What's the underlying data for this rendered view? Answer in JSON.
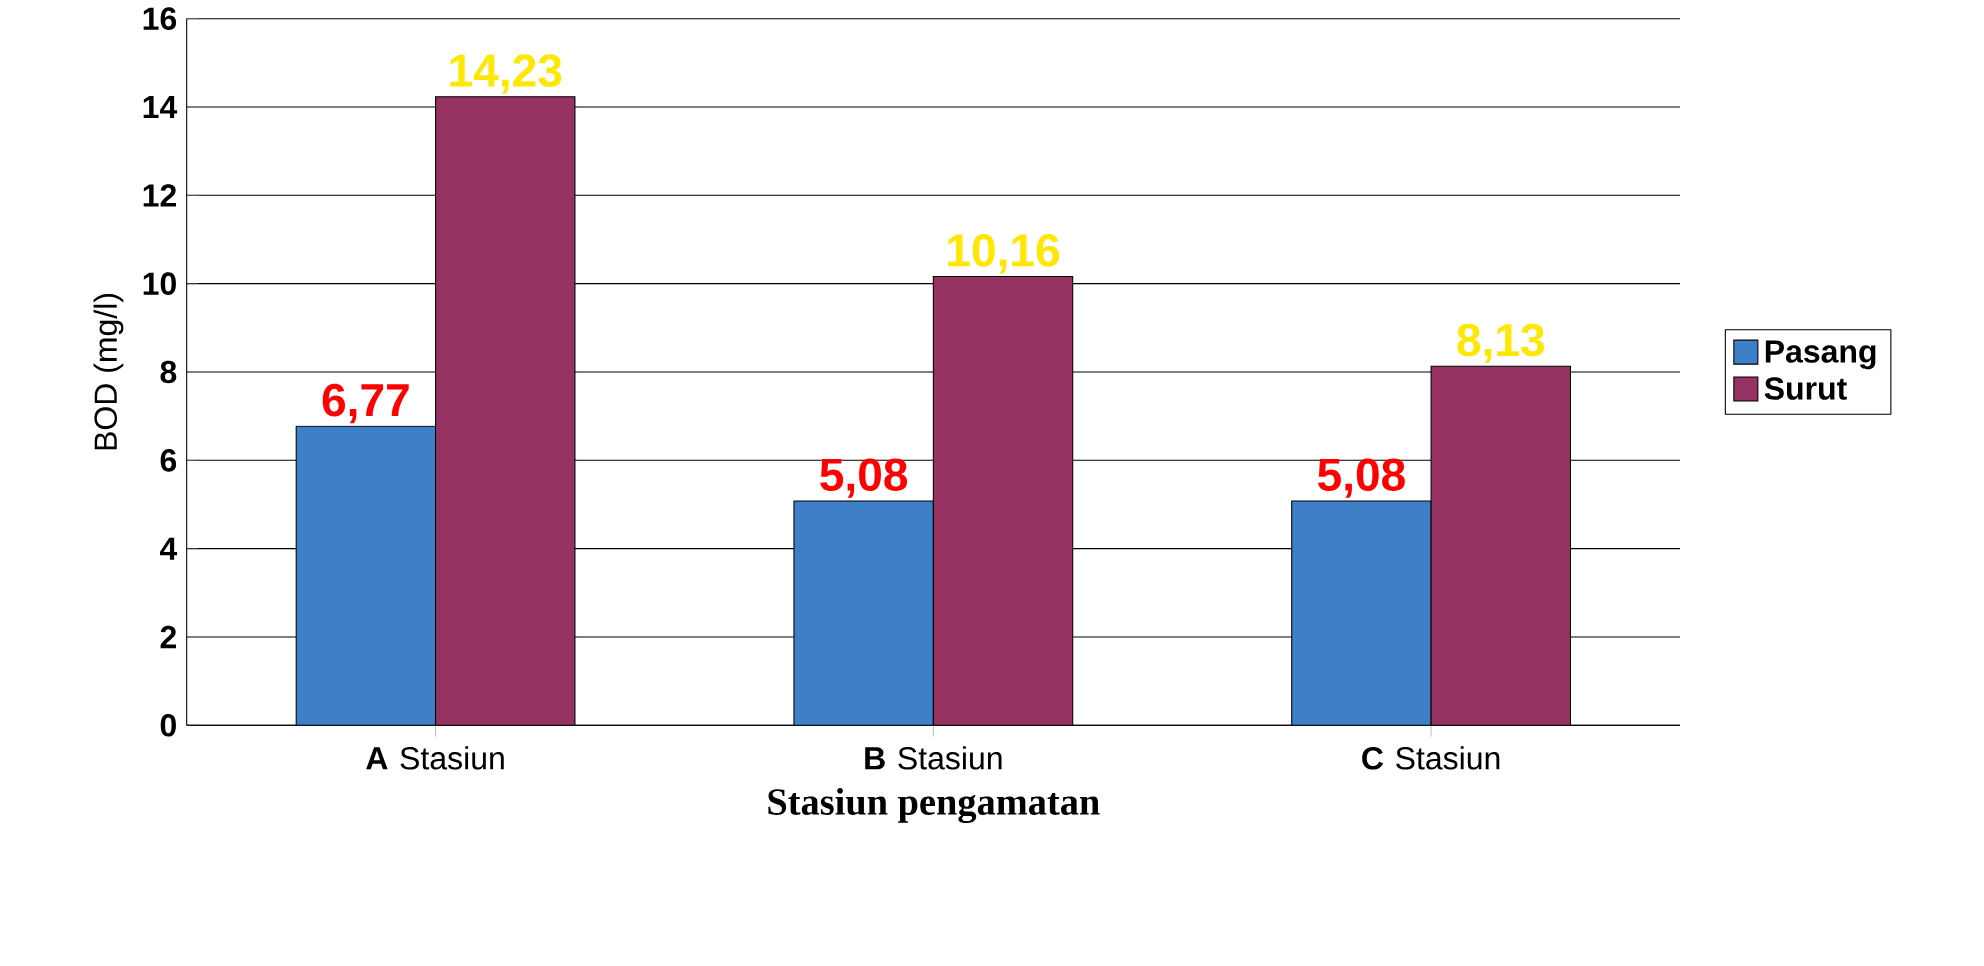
{
  "chart_data": {
    "type": "bar",
    "xlabel": "Stasiun pengamatan",
    "ylabel": "BOD (mg/l)",
    "categories": [
      "**A** Stasiun",
      "**B** Stasiun",
      "**C** Stasiun"
    ],
    "series": [
      {
        "name": "Pasang",
        "color": "#3d80c8",
        "values": [
          6.77,
          5.08,
          5.08
        ],
        "value_labels": [
          "6,77",
          "5,08",
          "5,08"
        ]
      },
      {
        "name": "Surut",
        "color": "#953262",
        "values": [
          14.23,
          10.16,
          8.13
        ],
        "value_labels": [
          "14,23",
          "10,16",
          "8,13"
        ]
      }
    ],
    "ylim": [
      0,
      16
    ],
    "yticks": [
      0,
      2,
      4,
      6,
      8,
      10,
      12,
      14,
      16
    ],
    "grid": "y",
    "legend": "right"
  }
}
